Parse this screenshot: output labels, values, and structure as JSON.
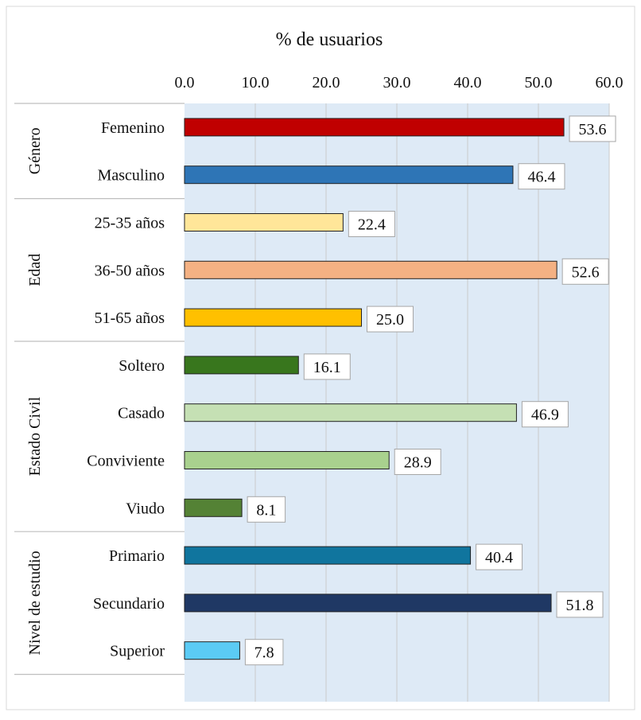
{
  "chart_data": {
    "type": "bar",
    "orientation": "horizontal",
    "title": "% de usuarios",
    "xlim": [
      0,
      60
    ],
    "xticks": [
      "0.0",
      "10.0",
      "20.0",
      "30.0",
      "40.0",
      "50.0",
      "60.0"
    ],
    "grid": true,
    "legend": "none",
    "groups": [
      {
        "name": "Género",
        "items": [
          {
            "label": "Femenino",
            "value": 53.6,
            "value_label": "53.6",
            "color": "#C00000"
          },
          {
            "label": "Masculino",
            "value": 46.4,
            "value_label": "46.4",
            "color": "#2E75B6"
          }
        ]
      },
      {
        "name": "Edad",
        "items": [
          {
            "label": "25-35 años",
            "value": 22.4,
            "value_label": "22.4",
            "color": "#FFE699"
          },
          {
            "label": "36-50 años",
            "value": 52.6,
            "value_label": "52.6",
            "color": "#F4B183"
          },
          {
            "label": "51-65 años",
            "value": 25.0,
            "value_label": "25.0",
            "color": "#FFC000"
          }
        ]
      },
      {
        "name": "Estado Civil",
        "items": [
          {
            "label": "Soltero",
            "value": 16.1,
            "value_label": "16.1",
            "color": "#38761D"
          },
          {
            "label": "Casado",
            "value": 46.9,
            "value_label": "46.9",
            "color": "#C5E0B4"
          },
          {
            "label": "Conviviente",
            "value": 28.9,
            "value_label": "28.9",
            "color": "#A9D18E"
          },
          {
            "label": "Viudo",
            "value": 8.1,
            "value_label": "8.1",
            "color": "#548235"
          }
        ]
      },
      {
        "name": "Nivel de estudio",
        "items": [
          {
            "label": "Primario",
            "value": 40.4,
            "value_label": "40.4",
            "color": "#10759E"
          },
          {
            "label": "Secundario",
            "value": 51.8,
            "value_label": "51.8",
            "color": "#1F3864"
          },
          {
            "label": "Superior",
            "value": 7.8,
            "value_label": "7.8",
            "color": "#5BCBF5"
          }
        ]
      }
    ],
    "colors": {
      "plot_background": "#DEEAF6",
      "gridline": "#C9C9C9",
      "separator": "#BFBFBF",
      "bar_outline": "#222222",
      "label_border": "#A6A6A6"
    }
  }
}
